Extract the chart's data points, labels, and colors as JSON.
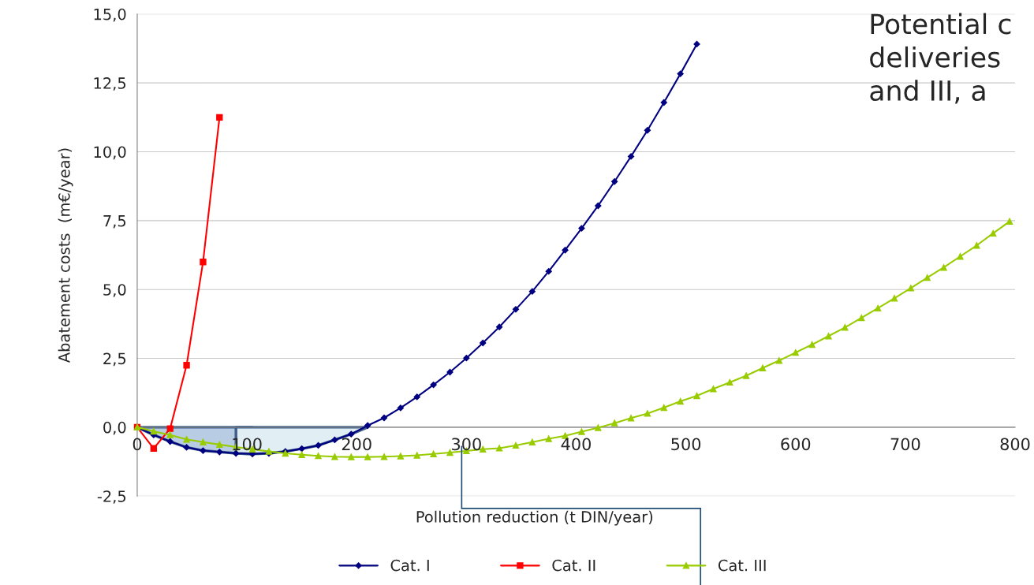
{
  "chart_data": {
    "type": "line",
    "xlabel": "Pollution reduction (t DIN/year)",
    "ylabel": "Abatement costs  (m€/year)",
    "annotations": [
      "Potential c",
      "deliveries",
      "and III, a"
    ],
    "series": [
      {
        "name": "Cat. I",
        "color": "#000080",
        "marker": "diamond",
        "x": [
          0,
          15,
          30,
          45,
          60,
          75,
          90,
          105,
          120,
          135,
          150,
          165,
          180,
          195,
          210,
          225,
          240,
          255,
          270,
          285,
          300,
          315,
          330,
          345,
          360,
          375,
          390,
          405,
          420,
          435,
          450,
          465,
          480,
          495,
          510
        ],
        "values": [
          0,
          -0.28,
          -0.52,
          -0.73,
          -0.85,
          -0.9,
          -0.95,
          -0.97,
          -0.95,
          -0.88,
          -0.78,
          -0.66,
          -0.46,
          -0.25,
          0.06,
          0.34,
          0.7,
          1.1,
          1.54,
          2.0,
          2.51,
          3.06,
          3.64,
          4.28,
          4.93,
          5.66,
          6.43,
          7.22,
          8.04,
          8.92,
          9.83,
          10.78,
          11.79,
          12.83,
          13.91
        ]
      },
      {
        "name": "Cat. II",
        "color": "#ff0000",
        "marker": "square",
        "x": [
          0,
          15,
          30,
          45,
          60,
          75
        ],
        "values": [
          0,
          -0.77,
          -0.05,
          2.25,
          6.0,
          11.25
        ]
      },
      {
        "name": "Cat. III",
        "color": "#99cc00",
        "marker": "triangle",
        "x": [
          0,
          15,
          30,
          45,
          60,
          75,
          90,
          105,
          120,
          135,
          150,
          165,
          180,
          195,
          210,
          225,
          240,
          255,
          270,
          285,
          300,
          315,
          330,
          345,
          360,
          375,
          390,
          405,
          420,
          435,
          450,
          465,
          480,
          495,
          510,
          525,
          540,
          555,
          570,
          585,
          600,
          615,
          630,
          645,
          660,
          675,
          690,
          705,
          720,
          735,
          750,
          765,
          780,
          795
        ],
        "values": [
          0,
          -0.15,
          -0.28,
          -0.44,
          -0.54,
          -0.63,
          -0.72,
          -0.8,
          -0.88,
          -0.95,
          -1.0,
          -1.04,
          -1.07,
          -1.08,
          -1.08,
          -1.07,
          -1.05,
          -1.02,
          -0.97,
          -0.92,
          -0.86,
          -0.8,
          -0.76,
          -0.66,
          -0.54,
          -0.42,
          -0.31,
          -0.16,
          -0.02,
          0.15,
          0.33,
          0.5,
          0.71,
          0.94,
          1.14,
          1.39,
          1.63,
          1.87,
          2.15,
          2.42,
          2.71,
          3.0,
          3.31,
          3.62,
          3.97,
          4.32,
          4.68,
          5.05,
          5.43,
          5.8,
          6.2,
          6.6,
          7.04,
          7.47
        ]
      }
    ],
    "xlim": [
      0,
      800
    ],
    "xticks": [
      0,
      100,
      200,
      300,
      400,
      500,
      600,
      700,
      800
    ],
    "ylim": [
      -2.5,
      15
    ],
    "yticks": [
      {
        "value": -2.5,
        "label": "-2,5"
      },
      {
        "value": 0,
        "label": "0,0"
      },
      {
        "value": 2.5,
        "label": "2,5"
      },
      {
        "value": 5,
        "label": "5,0"
      },
      {
        "value": 7.5,
        "label": "7,5"
      },
      {
        "value": 10,
        "label": "10,0"
      },
      {
        "value": 12.5,
        "label": "12,5"
      },
      {
        "value": 15,
        "label": "15,0"
      }
    ],
    "grid": "y",
    "legend": "bottom",
    "line_style": "solid"
  }
}
